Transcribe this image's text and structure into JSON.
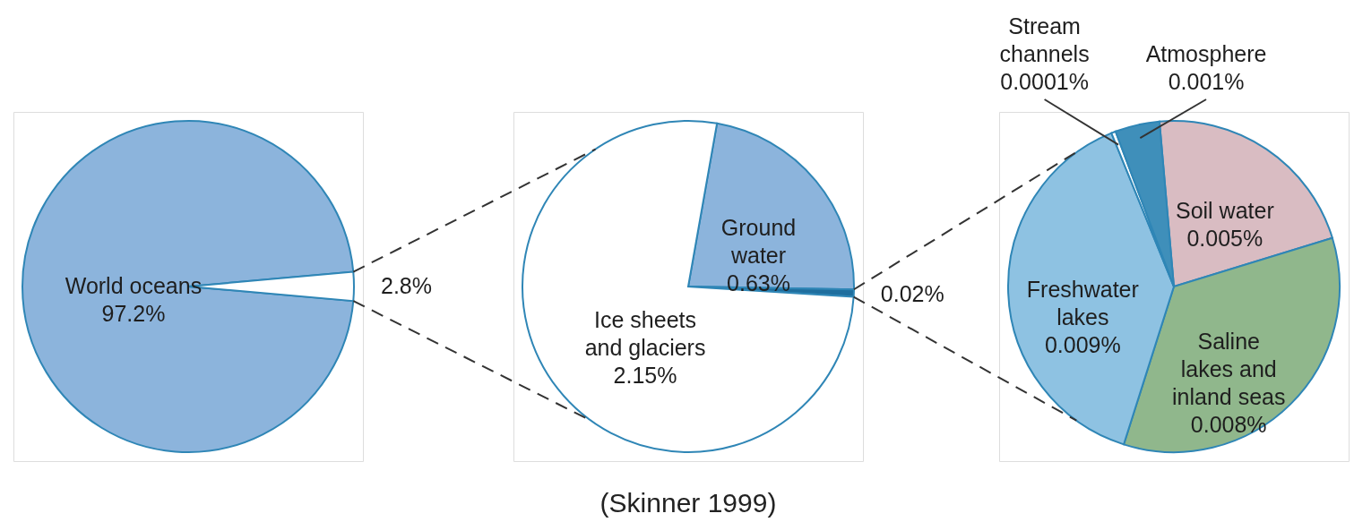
{
  "chart_data": [
    {
      "type": "pie",
      "categories": [
        "World oceans",
        null
      ],
      "values": [
        97.2,
        2.8
      ],
      "colors": [
        "#8cb4dc",
        "#ffffff"
      ],
      "value_labels": [
        "97.2%",
        "2.8%"
      ],
      "legend": false
    },
    {
      "type": "pie",
      "categories": [
        "Ground water",
        null,
        "Ice sheets and glaciers"
      ],
      "values": [
        0.63,
        0.02,
        2.15
      ],
      "colors": [
        "#8cb4dc",
        "#1f6e9e",
        "#ffffff"
      ],
      "value_labels": [
        "0.63%",
        "0.02%",
        "2.15%"
      ],
      "legend": false,
      "annotations": [
        "(Skinner 1999)"
      ]
    },
    {
      "type": "pie",
      "categories": [
        "Soil water",
        "Saline lakes and inland seas",
        "Freshwater lakes",
        "Stream channels",
        "Atmosphere"
      ],
      "values": [
        0.005,
        0.008,
        0.009,
        0.0001,
        0.001
      ],
      "colors": [
        "#d9bcc2",
        "#90b78c",
        "#8ec2e2",
        "#ffffff",
        "#3f8fba"
      ],
      "value_labels": [
        "0.005%",
        "0.008%",
        "0.009%",
        "0.0001%",
        "0.001%"
      ],
      "legend": false
    }
  ]
}
